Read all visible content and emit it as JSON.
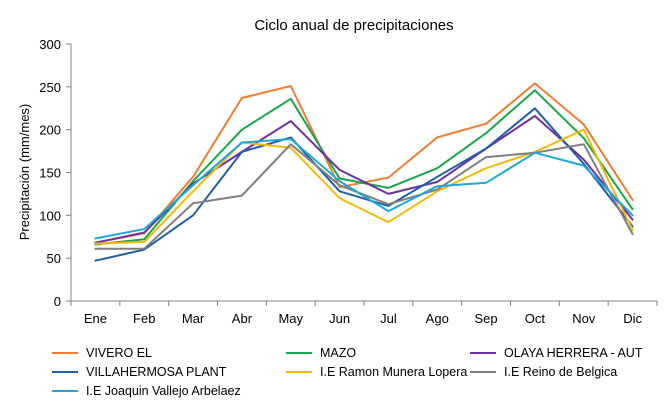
{
  "chart_data": {
    "type": "line",
    "title": "Ciclo anual de precipitaciones",
    "xlabel": "",
    "ylabel": "Precipitación (mm/mes)",
    "ylim": [
      0,
      300
    ],
    "yticks": [
      0,
      50,
      100,
      150,
      200,
      250,
      300
    ],
    "grid": false,
    "legend_position": "bottom",
    "categories": [
      "Ene",
      "Feb",
      "Mar",
      "Abr",
      "May",
      "Jun",
      "Jul",
      "Ago",
      "Sep",
      "Oct",
      "Nov",
      "Dic"
    ],
    "series": [
      {
        "name": "VIVERO EL",
        "color": "#ed7d31",
        "values": [
          68,
          79,
          145,
          237,
          251,
          133,
          144,
          191,
          207,
          254,
          206,
          118
        ]
      },
      {
        "name": "MAZO",
        "color": "#1aa64a",
        "values": [
          66,
          72,
          140,
          200,
          236,
          143,
          132,
          155,
          196,
          246,
          190,
          107
        ]
      },
      {
        "name": "OLAYA HERRERA - AUT",
        "color": "#7030a0",
        "values": [
          68,
          80,
          137,
          174,
          210,
          153,
          125,
          139,
          178,
          216,
          165,
          95
        ]
      },
      {
        "name": "VILLAHERMOSA PLANT",
        "color": "#1f5fa6",
        "values": [
          47,
          60,
          100,
          174,
          191,
          128,
          111,
          145,
          178,
          225,
          160,
          87
        ]
      },
      {
        "name": "I.E Ramon Munera Lopera",
        "color": "#f2b90c",
        "values": [
          67,
          69,
          128,
          185,
          179,
          120,
          92,
          128,
          155,
          174,
          200,
          83
        ]
      },
      {
        "name": "I.E Reino de Belgica",
        "color": "#7f7f7f",
        "values": [
          61,
          61,
          114,
          123,
          183,
          135,
          113,
          130,
          168,
          173,
          183,
          78
        ]
      },
      {
        "name": "I.E Joaquin Vallejo Arbelaez",
        "color": "#1fa8d6",
        "values": [
          73,
          84,
          135,
          185,
          189,
          140,
          105,
          134,
          138,
          173,
          158,
          100
        ]
      }
    ]
  }
}
